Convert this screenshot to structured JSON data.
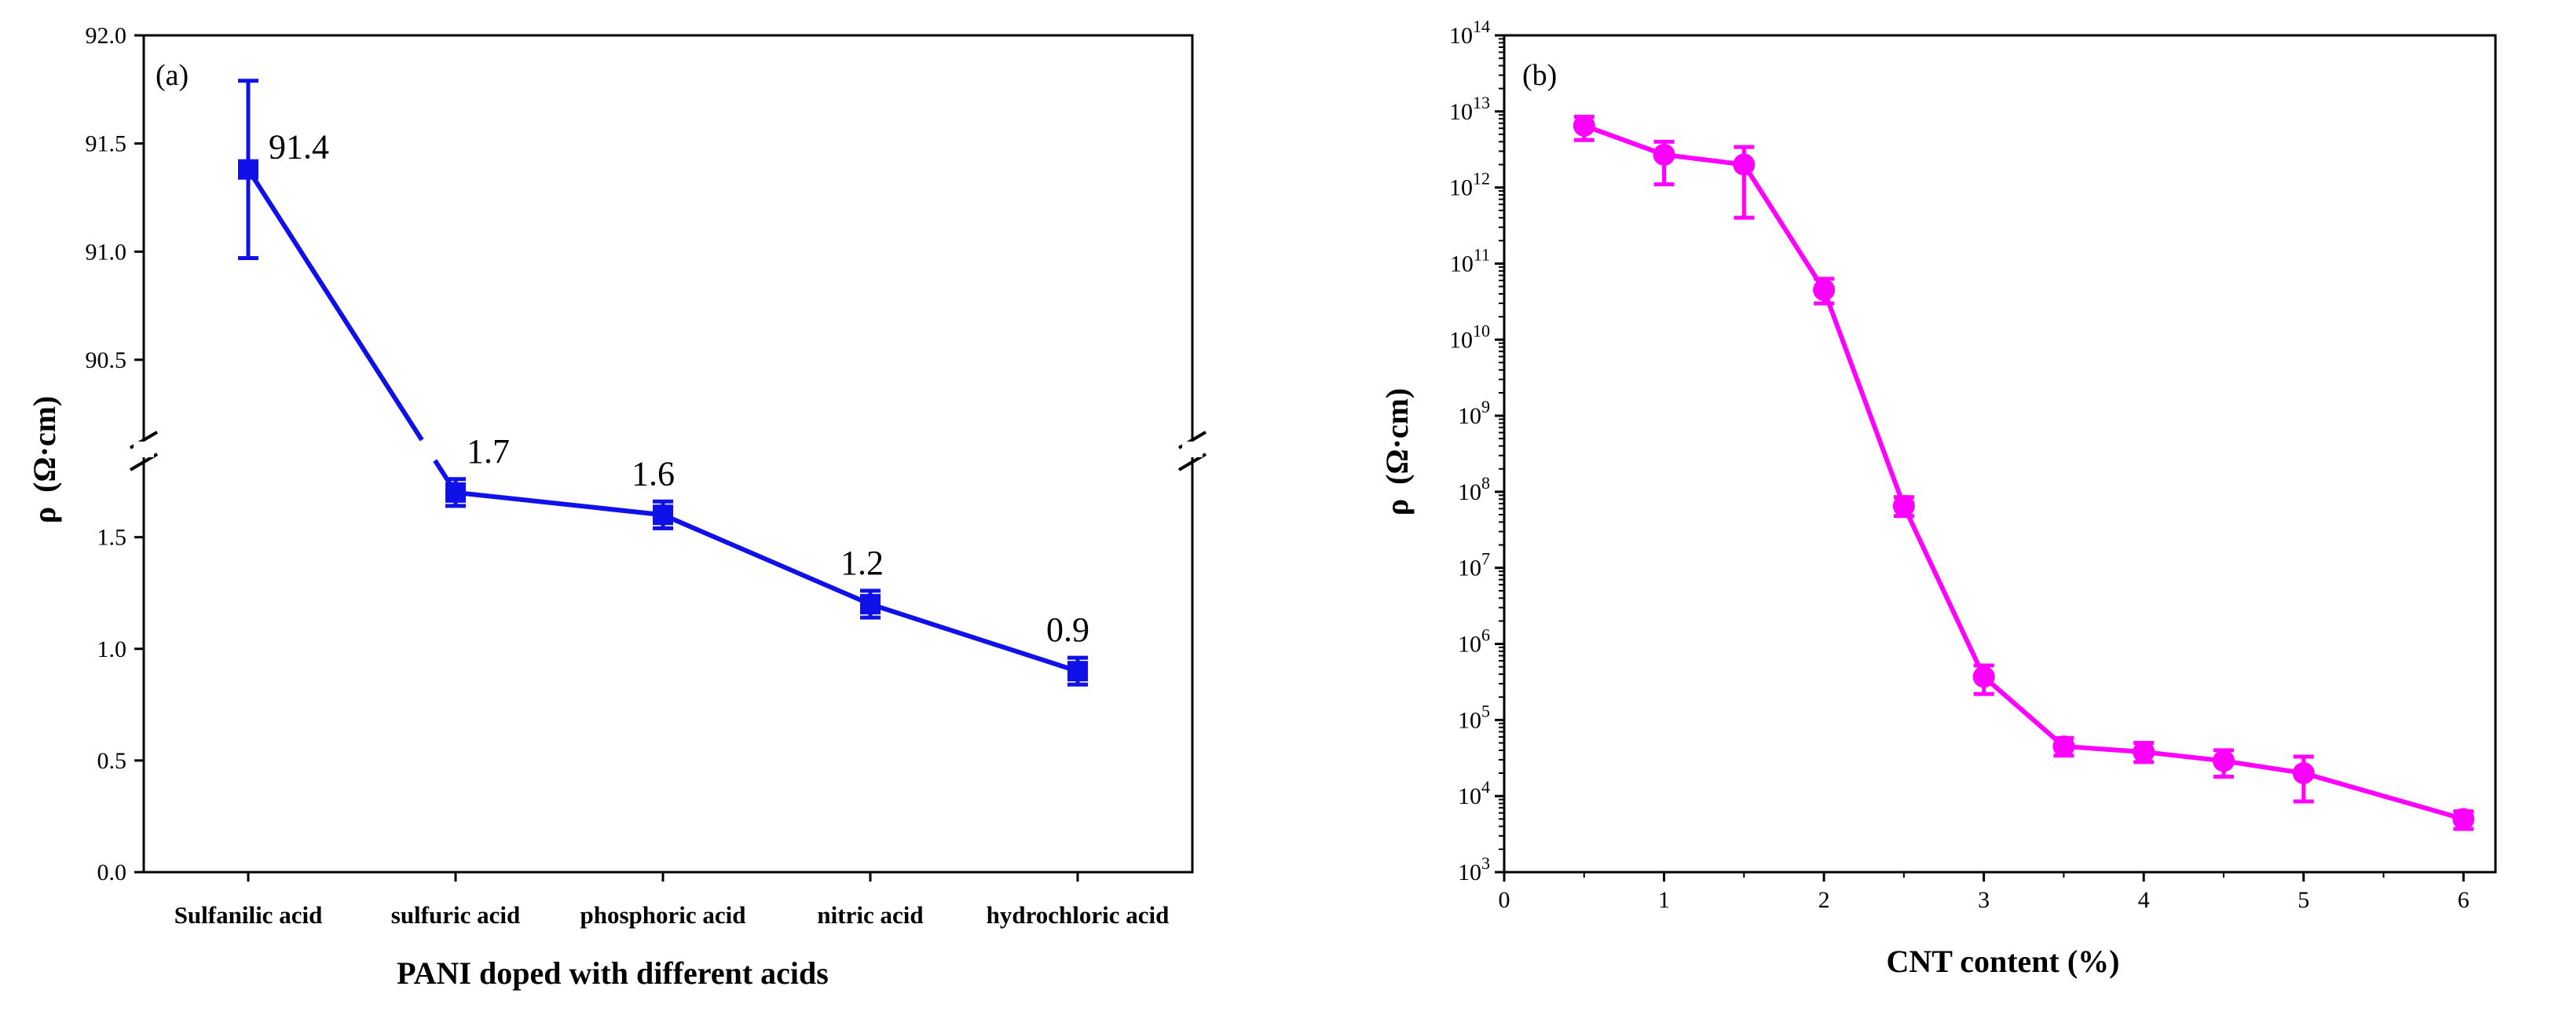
{
  "chart_data": [
    {
      "type": "line",
      "panel_label": "(a)",
      "xlabel": "PANI doped with different acids",
      "ylabel_symbol": "ρ",
      "ylabel_unit": "(Ω·cm)",
      "y_broken_axis": true,
      "ylim_upper": [
        90.1,
        92.0
      ],
      "ylim_lower": [
        0.0,
        1.9
      ],
      "yticks_upper": [
        "90.5",
        "91.0",
        "91.5",
        "92.0"
      ],
      "yticks_lower": [
        "0.0",
        "0.5",
        "1.0",
        "1.5"
      ],
      "color": "#1010e8",
      "categories": [
        "Sulfanilic acid",
        "sulfuric acid",
        "phosphoric acid",
        "nitric acid",
        "hydrochloric acid"
      ],
      "values": [
        91.38,
        1.7,
        1.6,
        1.2,
        0.9
      ],
      "errors": [
        0.41,
        0.06,
        0.06,
        0.06,
        0.06
      ],
      "data_labels": [
        "91.4",
        "1.7",
        "1.6",
        "1.2",
        "0.9"
      ]
    },
    {
      "type": "line",
      "panel_label": "(b)",
      "xlabel": "CNT content (%)",
      "ylabel_symbol": "ρ",
      "ylabel_unit": "(Ω·cm)",
      "yscale": "log",
      "ylim_exp": [
        3,
        14
      ],
      "ytick_base": "10",
      "ytick_exponents": [
        "3",
        "4",
        "5",
        "6",
        "7",
        "8",
        "9",
        "10",
        "11",
        "12",
        "13",
        "14"
      ],
      "xlim": [
        0,
        6.2
      ],
      "xticks": [
        "0",
        "1",
        "2",
        "3",
        "4",
        "5",
        "6"
      ],
      "color": "#ff00ff",
      "x": [
        0.5,
        1.0,
        1.5,
        2.0,
        2.5,
        3.0,
        3.5,
        4.0,
        4.5,
        5.0,
        6.0
      ],
      "values": [
        6500000000000.0,
        2700000000000.0,
        2000000000000.0,
        45000000000.0,
        65000000.0,
        370000.0,
        45000.0,
        38000.0,
        29000.0,
        20000.0,
        5000.0
      ],
      "err_low": [
        4200000000000.0,
        1100000000000.0,
        400000000000.0,
        30000000000.0,
        48000000.0,
        220000.0,
        34000.0,
        28000.0,
        18000.0,
        8500.0,
        3700.0
      ],
      "err_high": [
        8500000000000.0,
        4000000000000.0,
        3400000000000.0,
        63000000000.0,
        85000000.0,
        520000.0,
        58000.0,
        50000.0,
        40000.0,
        33000.0,
        6300.0
      ]
    }
  ]
}
